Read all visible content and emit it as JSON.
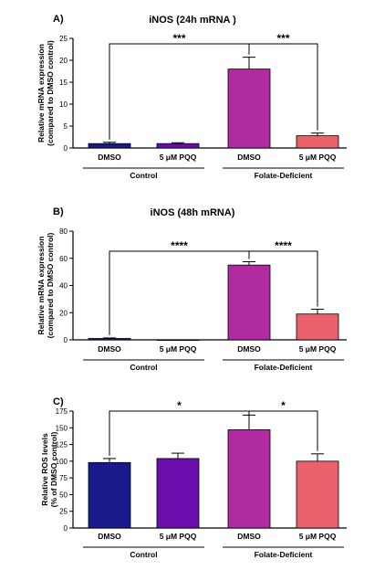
{
  "colors": {
    "dmso_control": "#1a1a8c",
    "pqq_control": "#6a0dad",
    "dmso_folate": "#b02aa0",
    "pqq_folate": "#e9626a",
    "axis": "#000000"
  },
  "chart_data": [
    {
      "panel": "A)",
      "type": "bar",
      "title": "iNOS (24h mRNA )",
      "ylabel": "Relative mRNA expression\n(compared to DMSO control)",
      "ylim": [
        0,
        25
      ],
      "yticks": [
        0,
        5,
        10,
        15,
        20,
        25
      ],
      "categories": [
        "DMSO",
        "5 μM PQQ",
        "DMSO",
        "5 μM PQQ"
      ],
      "groups": [
        {
          "label": "Control",
          "categories": [
            0,
            1
          ]
        },
        {
          "label": "Folate-Deficient",
          "categories": [
            2,
            3
          ]
        }
      ],
      "values": [
        1.0,
        1.0,
        18.0,
        2.8
      ],
      "errors": [
        0.3,
        0.2,
        2.7,
        0.6
      ],
      "significance": [
        {
          "from": 0,
          "to": 2,
          "label": "***"
        },
        {
          "from": 2,
          "to": 3,
          "label": "***"
        }
      ]
    },
    {
      "panel": "B)",
      "type": "bar",
      "title": "iNOS (48h mRNA)",
      "ylabel": "Relative mRNA expression\n(compared to DMSO control)",
      "ylim": [
        0,
        80
      ],
      "yticks": [
        0,
        20,
        40,
        60,
        80
      ],
      "categories": [
        "DMSO",
        "5 μM PQQ",
        "DMSO",
        "5 μM PQQ"
      ],
      "groups": [
        {
          "label": "Control",
          "categories": [
            0,
            1
          ]
        },
        {
          "label": "Folate-Deficient",
          "categories": [
            2,
            3
          ]
        }
      ],
      "values": [
        1.0,
        0.0,
        55.0,
        19.0
      ],
      "errors": [
        0.4,
        0.0,
        2.5,
        3.5
      ],
      "significance": [
        {
          "from": 0,
          "to": 2,
          "label": "****"
        },
        {
          "from": 2,
          "to": 3,
          "label": "****"
        }
      ]
    },
    {
      "panel": "C)",
      "type": "bar",
      "title": "",
      "ylabel": "Relative ROS levels\n(% of DMSO control)",
      "ylim": [
        0,
        175
      ],
      "yticks": [
        0,
        25,
        50,
        75,
        100,
        125,
        150,
        175
      ],
      "categories": [
        "DMSO",
        "5 μM PQQ",
        "DMSO",
        "5 μM PQQ"
      ],
      "groups": [
        {
          "label": "Control",
          "categories": [
            0,
            1
          ]
        },
        {
          "label": "Folate-Deficient",
          "categories": [
            2,
            3
          ]
        }
      ],
      "values": [
        98,
        104,
        147,
        100
      ],
      "errors": [
        6,
        8,
        22,
        11
      ],
      "significance": [
        {
          "from": 0,
          "to": 2,
          "label": "*"
        },
        {
          "from": 2,
          "to": 3,
          "label": "*"
        }
      ]
    }
  ]
}
